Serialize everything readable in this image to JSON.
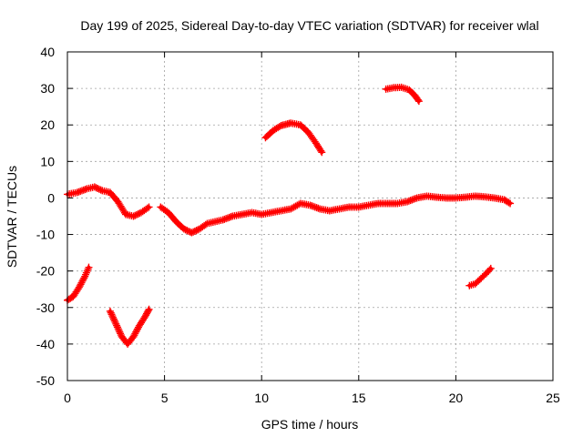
{
  "chart_data": {
    "type": "scatter",
    "title": "Day 199 of 2025, Sidereal Day-to-day VTEC variation (SDTVAR) for receiver wlal",
    "xlabel": "GPS time / hours",
    "ylabel": "SDTVAR / TECUs",
    "xlim": [
      0,
      25
    ],
    "ylim": [
      -50,
      40
    ],
    "xticks": [
      0,
      5,
      10,
      15,
      20,
      25
    ],
    "yticks": [
      -50,
      -40,
      -30,
      -20,
      -10,
      0,
      10,
      20,
      30,
      40
    ],
    "xtick_labels": [
      "0",
      "5",
      "10",
      "15",
      "20",
      "25"
    ],
    "ytick_labels": [
      "-50",
      "-40",
      "-30",
      "-20",
      "-10",
      "0",
      "10",
      "20",
      "30",
      "40"
    ],
    "grid": true,
    "marker": "plus",
    "color": "#ff0000",
    "series": [
      {
        "name": "arc-main-early",
        "x": [
          0.0,
          0.5,
          1.0,
          1.4,
          1.8,
          2.2,
          2.6,
          3.0,
          3.4,
          3.8,
          4.2
        ],
        "y": [
          1.0,
          1.5,
          2.5,
          3.0,
          2.0,
          1.5,
          -1.0,
          -4.5,
          -5.0,
          -4.0,
          -2.5
        ]
      },
      {
        "name": "arc-main-late",
        "x": [
          4.8,
          5.2,
          5.6,
          6.0,
          6.4,
          6.8,
          7.2,
          7.6,
          8.0,
          8.5,
          9.0,
          9.5,
          10.0,
          10.5,
          11.0,
          11.5,
          12.0,
          12.5,
          13.0,
          13.5,
          14.0,
          14.5,
          15.0,
          15.5,
          16.0,
          16.5,
          17.0,
          17.5,
          18.0,
          18.5,
          19.0,
          19.5,
          20.0,
          20.5,
          21.0,
          21.5,
          22.0,
          22.5,
          22.8
        ],
        "y": [
          -2.5,
          -4.0,
          -6.5,
          -8.5,
          -9.5,
          -8.5,
          -7.0,
          -6.5,
          -6.0,
          -5.0,
          -4.5,
          -4.0,
          -4.5,
          -4.0,
          -3.5,
          -3.0,
          -1.5,
          -2.0,
          -3.0,
          -3.5,
          -3.0,
          -2.5,
          -2.5,
          -2.0,
          -1.5,
          -1.5,
          -1.5,
          -1.0,
          0.0,
          0.5,
          0.2,
          0.0,
          0.0,
          0.2,
          0.5,
          0.3,
          0.0,
          -0.5,
          -1.5
        ]
      },
      {
        "name": "arc-neg-early",
        "x": [
          0.0,
          0.3,
          0.6,
          0.9,
          1.1
        ],
        "y": [
          -28.0,
          -27.0,
          -24.5,
          -21.5,
          -19.0
        ]
      },
      {
        "name": "arc-v-shape",
        "x": [
          2.2,
          2.5,
          2.8,
          3.1,
          3.4,
          3.7,
          4.0,
          4.2
        ],
        "y": [
          -31.0,
          -34.5,
          -38.0,
          -40.0,
          -38.0,
          -35.0,
          -32.5,
          -30.5
        ]
      },
      {
        "name": "arc-pos-20",
        "x": [
          10.2,
          10.6,
          11.0,
          11.5,
          12.0,
          12.4,
          12.8,
          13.1
        ],
        "y": [
          16.5,
          18.5,
          19.8,
          20.5,
          20.0,
          18.0,
          15.0,
          12.5
        ]
      },
      {
        "name": "arc-pos-30",
        "x": [
          16.4,
          16.8,
          17.2,
          17.6,
          17.9,
          18.1
        ],
        "y": [
          29.8,
          30.2,
          30.3,
          29.6,
          28.0,
          26.5
        ]
      },
      {
        "name": "arc-neg-late",
        "x": [
          20.7,
          21.0,
          21.3,
          21.6,
          21.8
        ],
        "y": [
          -24.0,
          -23.5,
          -22.0,
          -20.5,
          -19.3
        ]
      }
    ]
  }
}
